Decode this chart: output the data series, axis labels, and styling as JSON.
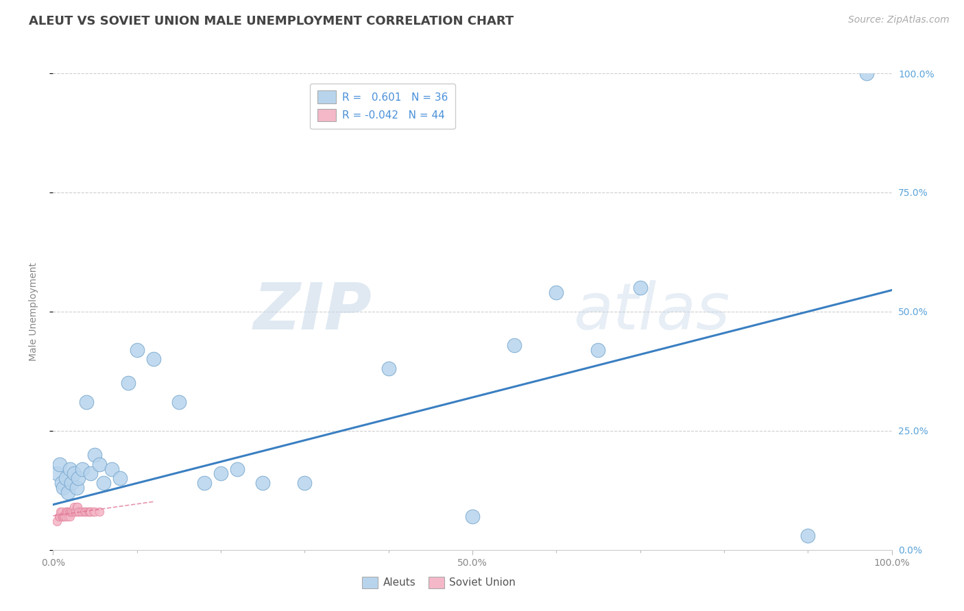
{
  "title": "ALEUT VS SOVIET UNION MALE UNEMPLOYMENT CORRELATION CHART",
  "source_text": "Source: ZipAtlas.com",
  "ylabel": "Male Unemployment",
  "xlim": [
    0,
    1
  ],
  "ylim": [
    0,
    1
  ],
  "aleuts_x": [
    0.005,
    0.008,
    0.01,
    0.012,
    0.015,
    0.018,
    0.02,
    0.022,
    0.025,
    0.028,
    0.03,
    0.035,
    0.04,
    0.045,
    0.05,
    0.055,
    0.06,
    0.07,
    0.08,
    0.09,
    0.1,
    0.12,
    0.15,
    0.18,
    0.2,
    0.22,
    0.25,
    0.3,
    0.4,
    0.5,
    0.55,
    0.6,
    0.65,
    0.7,
    0.9,
    0.97
  ],
  "aleuts_y": [
    0.16,
    0.18,
    0.14,
    0.13,
    0.15,
    0.12,
    0.17,
    0.14,
    0.16,
    0.13,
    0.15,
    0.17,
    0.31,
    0.16,
    0.2,
    0.18,
    0.14,
    0.17,
    0.15,
    0.35,
    0.42,
    0.4,
    0.31,
    0.14,
    0.16,
    0.17,
    0.14,
    0.14,
    0.38,
    0.07,
    0.43,
    0.54,
    0.42,
    0.55,
    0.03,
    1.0
  ],
  "soviet_x": [
    0.005,
    0.007,
    0.008,
    0.009,
    0.01,
    0.01,
    0.01,
    0.011,
    0.012,
    0.013,
    0.014,
    0.015,
    0.015,
    0.016,
    0.017,
    0.018,
    0.018,
    0.019,
    0.02,
    0.02,
    0.021,
    0.022,
    0.023,
    0.024,
    0.025,
    0.026,
    0.027,
    0.028,
    0.028,
    0.029,
    0.03,
    0.031,
    0.033,
    0.035,
    0.037,
    0.038,
    0.04,
    0.042,
    0.043,
    0.044,
    0.045,
    0.048,
    0.05,
    0.055
  ],
  "soviet_y": [
    0.06,
    0.07,
    0.07,
    0.08,
    0.07,
    0.07,
    0.08,
    0.07,
    0.07,
    0.07,
    0.07,
    0.07,
    0.08,
    0.08,
    0.08,
    0.07,
    0.08,
    0.08,
    0.07,
    0.08,
    0.08,
    0.08,
    0.08,
    0.08,
    0.09,
    0.08,
    0.08,
    0.08,
    0.09,
    0.09,
    0.08,
    0.08,
    0.08,
    0.08,
    0.08,
    0.08,
    0.08,
    0.08,
    0.08,
    0.08,
    0.08,
    0.08,
    0.08,
    0.08
  ],
  "reg_line_x0": 0.0,
  "reg_line_x1": 1.0,
  "reg_line_y0": 0.095,
  "reg_line_y1": 0.545,
  "aleuts_color": "#b8d4ed",
  "aleuts_edge_color": "#7aaad0",
  "soviet_color": "#f4b8c8",
  "soviet_edge_color": "#e890a8",
  "reg_line_color": "#3a7fc1",
  "reg_line_pink": "#e07090",
  "watermark_zip": "ZIP",
  "watermark_atlas": "atlas",
  "background_color": "#ffffff",
  "grid_color": "#c8c8c8",
  "title_fontsize": 13,
  "axis_label_fontsize": 10,
  "tick_fontsize": 10,
  "legend_fontsize": 11,
  "source_fontsize": 10,
  "right_ytick_color": "#5ba3d9",
  "legend_text_color": "#4a90d9",
  "bottom_legend_text_color": "#555555"
}
